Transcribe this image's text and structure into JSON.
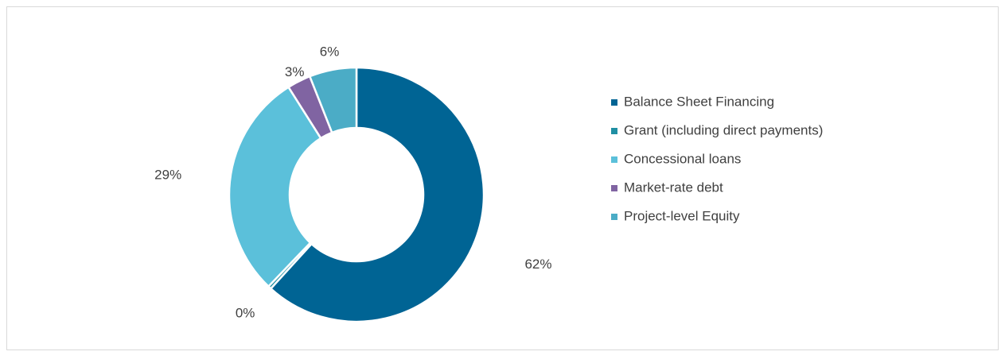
{
  "chart_data": {
    "type": "donut",
    "categories": [
      "Balance Sheet Financing",
      "Grant (including direct payments)",
      "Concessional loans",
      "Market-rate debt",
      "Project-level Equity"
    ],
    "values": [
      62,
      0.4,
      29,
      3,
      6
    ],
    "value_labels": [
      "62%",
      "0%",
      "29%",
      "3%",
      "6%"
    ],
    "colors": [
      "#006494",
      "#1f8fa3",
      "#5bc0da",
      "#8064a2",
      "#4bacc6"
    ],
    "legend": "right"
  }
}
